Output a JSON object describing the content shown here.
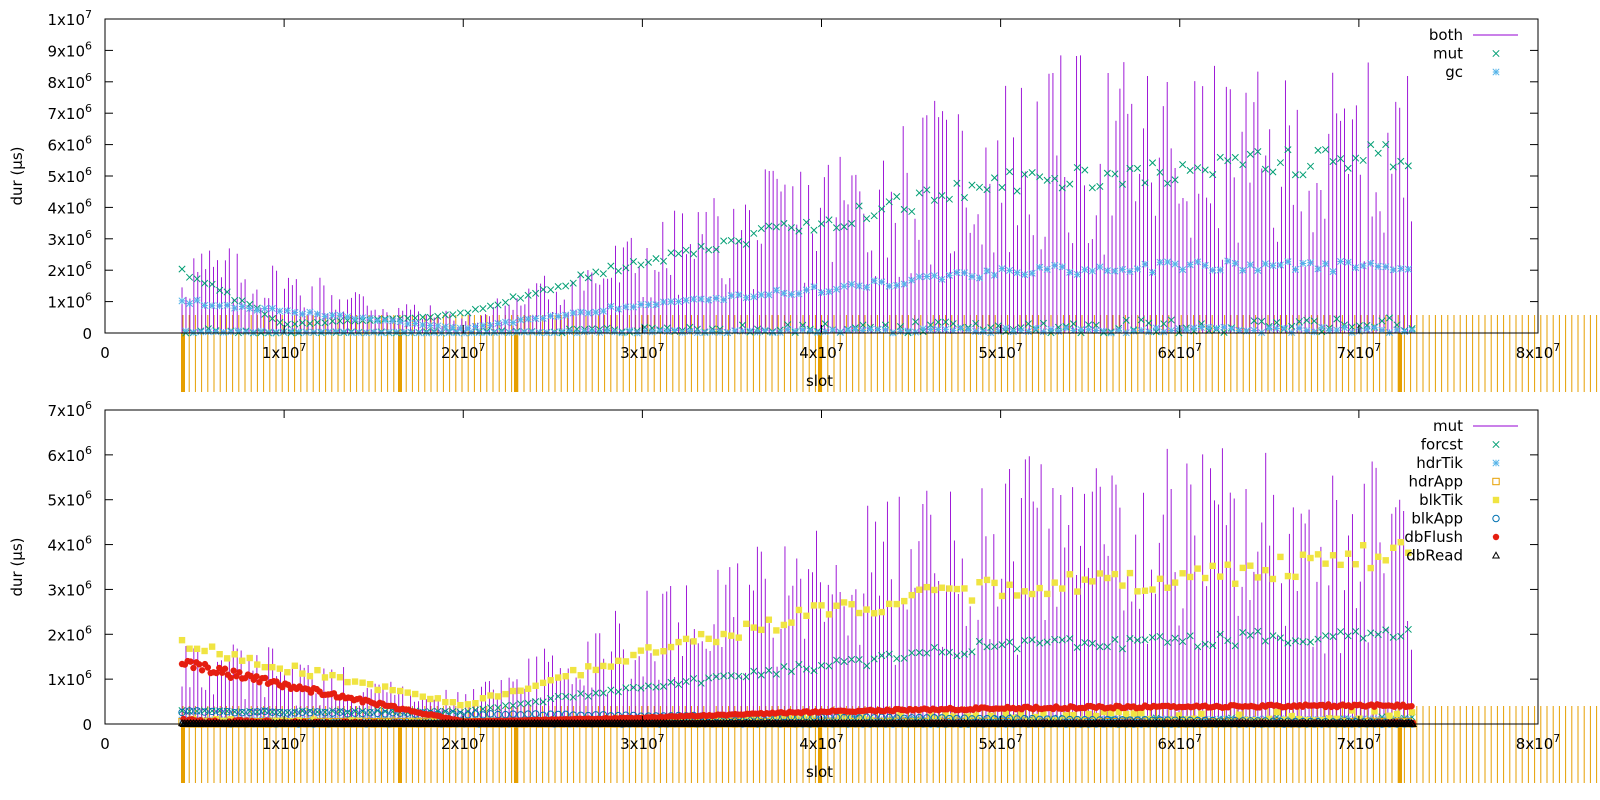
{
  "chart_data": [
    {
      "type": "scatter",
      "xlabel": "slot",
      "ylabel": "dur (µs)",
      "xlim": [
        0,
        80000000
      ],
      "ylim": [
        0,
        10000000
      ],
      "x_ticks": [
        {
          "value": 0,
          "base": "0",
          "exp": ""
        },
        {
          "value": 10000000,
          "base": "1x10",
          "exp": "7"
        },
        {
          "value": 20000000,
          "base": "2x10",
          "exp": "7"
        },
        {
          "value": 30000000,
          "base": "3x10",
          "exp": "7"
        },
        {
          "value": 40000000,
          "base": "4x10",
          "exp": "7"
        },
        {
          "value": 50000000,
          "base": "5x10",
          "exp": "7"
        },
        {
          "value": 60000000,
          "base": "6x10",
          "exp": "7"
        },
        {
          "value": 70000000,
          "base": "7x10",
          "exp": "7"
        },
        {
          "value": 80000000,
          "base": "8x10",
          "exp": "7"
        }
      ],
      "y_ticks": [
        {
          "value": 0,
          "base": "0",
          "exp": ""
        },
        {
          "value": 1000000,
          "base": "1x10",
          "exp": "6"
        },
        {
          "value": 2000000,
          "base": "2x10",
          "exp": "6"
        },
        {
          "value": 3000000,
          "base": "3x10",
          "exp": "6"
        },
        {
          "value": 4000000,
          "base": "4x10",
          "exp": "6"
        },
        {
          "value": 5000000,
          "base": "5x10",
          "exp": "6"
        },
        {
          "value": 6000000,
          "base": "6x10",
          "exp": "6"
        },
        {
          "value": 7000000,
          "base": "7x10",
          "exp": "6"
        },
        {
          "value": 8000000,
          "base": "8x10",
          "exp": "6"
        },
        {
          "value": 9000000,
          "base": "9x10",
          "exp": "6"
        },
        {
          "value": 10000000,
          "base": "1x10",
          "exp": "7"
        }
      ],
      "grid": false,
      "legend_position": "top-right",
      "series": [
        {
          "name": "both",
          "style": "impulses",
          "color": "#9400d3",
          "envelope": {
            "x": [
              4300000,
              20000000,
              30000000,
              40000000,
              50000000,
              55000000,
              65000000,
              73000000
            ],
            "y": [
              3200000,
              600000,
              3500000,
              6000000,
              8400000,
              9100000,
              8300000,
              8800000
            ]
          }
        },
        {
          "name": "mut",
          "style": "cross",
          "color": "#009e73",
          "envelope": {
            "x": [
              4300000,
              10000000,
              20000000,
              30000000,
              40000000,
              50000000,
              60000000,
              73000000
            ],
            "y": [
              2200000,
              300000,
              650000,
              2500000,
              3800000,
              5200000,
              5600000,
              6200000
            ]
          }
        },
        {
          "name": "gc",
          "style": "star",
          "color": "#56b4e9",
          "envelope": {
            "x": [
              4300000,
              20000000,
              30000000,
              40000000,
              50000000,
              60000000,
              73000000
            ],
            "y": [
              1100000,
              150000,
              1000000,
              1500000,
              2100000,
              2300000,
              2300000
            ]
          }
        }
      ]
    },
    {
      "type": "scatter",
      "xlabel": "slot",
      "ylabel": "dur (µs)",
      "xlim": [
        0,
        80000000
      ],
      "ylim": [
        0,
        7000000
      ],
      "x_ticks": [
        {
          "value": 0,
          "base": "0",
          "exp": ""
        },
        {
          "value": 10000000,
          "base": "1x10",
          "exp": "7"
        },
        {
          "value": 20000000,
          "base": "2x10",
          "exp": "7"
        },
        {
          "value": 30000000,
          "base": "3x10",
          "exp": "7"
        },
        {
          "value": 40000000,
          "base": "4x10",
          "exp": "7"
        },
        {
          "value": 50000000,
          "base": "5x10",
          "exp": "7"
        },
        {
          "value": 60000000,
          "base": "6x10",
          "exp": "7"
        },
        {
          "value": 70000000,
          "base": "7x10",
          "exp": "7"
        },
        {
          "value": 80000000,
          "base": "8x10",
          "exp": "7"
        }
      ],
      "y_ticks": [
        {
          "value": 0,
          "base": "0",
          "exp": ""
        },
        {
          "value": 1000000,
          "base": "1x10",
          "exp": "6"
        },
        {
          "value": 2000000,
          "base": "2x10",
          "exp": "6"
        },
        {
          "value": 3000000,
          "base": "3x10",
          "exp": "6"
        },
        {
          "value": 4000000,
          "base": "4x10",
          "exp": "6"
        },
        {
          "value": 5000000,
          "base": "5x10",
          "exp": "6"
        },
        {
          "value": 6000000,
          "base": "6x10",
          "exp": "6"
        },
        {
          "value": 7000000,
          "base": "7x10",
          "exp": "6"
        }
      ],
      "grid": false,
      "legend_position": "top-right",
      "series": [
        {
          "name": "mut",
          "style": "impulses",
          "color": "#9400d3",
          "envelope": {
            "x": [
              4300000,
              20000000,
              30000000,
              40000000,
              50000000,
              55000000,
              65000000,
              73000000
            ],
            "y": [
              2200000,
              700000,
              3000000,
              4700000,
              6000000,
              6400000,
              6300000,
              6000000
            ]
          }
        },
        {
          "name": "forcst",
          "style": "cross",
          "color": "#009e73",
          "envelope": {
            "x": [
              4300000,
              20000000,
              30000000,
              40000000,
              50000000,
              60000000,
              73000000
            ],
            "y": [
              300000,
              300000,
              900000,
              1400000,
              1900000,
              2000000,
              2200000
            ]
          }
        },
        {
          "name": "hdrTik",
          "style": "star",
          "color": "#56b4e9",
          "envelope": {
            "x": [
              4300000,
              30000000,
              73000000
            ],
            "y": [
              100000,
              100000,
              120000
            ]
          }
        },
        {
          "name": "hdrApp",
          "style": "open-square",
          "color": "#e69f00",
          "envelope": {
            "x": [
              4300000,
              73000000
            ],
            "y": [
              60000,
              60000
            ]
          }
        },
        {
          "name": "blkTik",
          "style": "filled-square",
          "color": "#f0e442",
          "envelope": {
            "x": [
              4300000,
              20000000,
              30000000,
              40000000,
              50000000,
              60000000,
              73000000
            ],
            "y": [
              1900000,
              450000,
              1700000,
              2700000,
              3300000,
              3500000,
              4200000
            ]
          }
        },
        {
          "name": "blkApp",
          "style": "open-circle",
          "color": "#0072b2",
          "envelope": {
            "x": [
              4300000,
              73000000
            ],
            "y": [
              300000,
              40000
            ]
          }
        },
        {
          "name": "dbFlush",
          "style": "filled-circle",
          "color": "#e51e10",
          "envelope": {
            "x": [
              4300000,
              20000000,
              30000000,
              40000000,
              50000000,
              60000000,
              73000000
            ],
            "y": [
              1450000,
              60000,
              150000,
              300000,
              380000,
              420000,
              450000
            ]
          }
        },
        {
          "name": "dbRead",
          "style": "open-triangle",
          "color": "#000000",
          "envelope": {
            "x": [
              4300000,
              73000000
            ],
            "y": [
              20000,
              20000
            ]
          }
        }
      ]
    }
  ],
  "colors": {
    "marker_strip": "#e69f00"
  }
}
